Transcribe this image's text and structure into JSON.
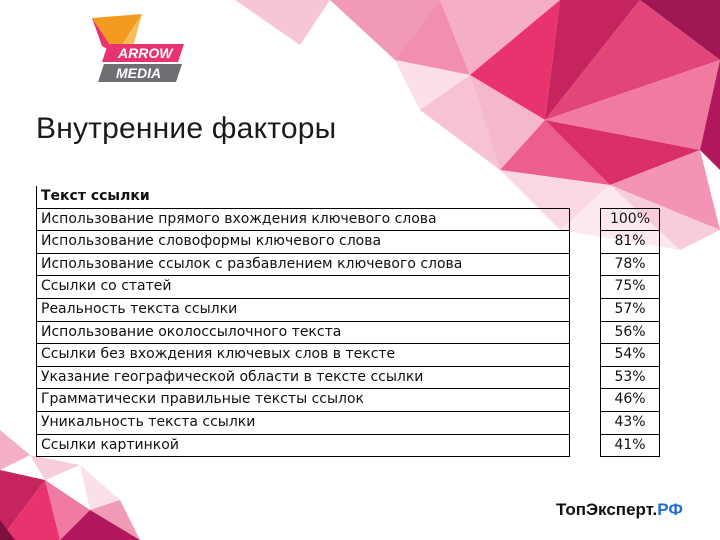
{
  "logo": {
    "line1": "ARROW",
    "line2": "MEDIA"
  },
  "title": "Внутренние факторы",
  "table": {
    "header": "Текст ссылки",
    "rows": [
      {
        "label": "Использование прямого вхождения ключевого слова",
        "value": "100%"
      },
      {
        "label": "Использование словоформы ключевого слова",
        "value": "81%"
      },
      {
        "label": "Использование ссылок с разбавлением ключевого слова",
        "value": "78%"
      },
      {
        "label": "Ссылки со статей",
        "value": "75%"
      },
      {
        "label": "Реальность текста ссылки",
        "value": "57%"
      },
      {
        "label": "Использование околоссылочного текста",
        "value": "56%"
      },
      {
        "label": "Ссылки без вхождения ключевых слов в тексте",
        "value": "54%"
      },
      {
        "label": "Указание географической области в тексте ссылки",
        "value": "53%"
      },
      {
        "label": "Грамматически правильные тексты ссылок",
        "value": "46%"
      },
      {
        "label": "Уникальность текста ссылки",
        "value": "43%"
      },
      {
        "label": "Ссылки картинкой",
        "value": "41%"
      }
    ]
  },
  "brand": {
    "main": "ТопЭксперт.",
    "accent": "РФ"
  },
  "colors": {
    "pink": "#e8336e",
    "magenta": "#b0175d",
    "orange": "#f39a1f",
    "logo_gray": "#6e6f73",
    "brand_blue": "#1f6ec9"
  }
}
